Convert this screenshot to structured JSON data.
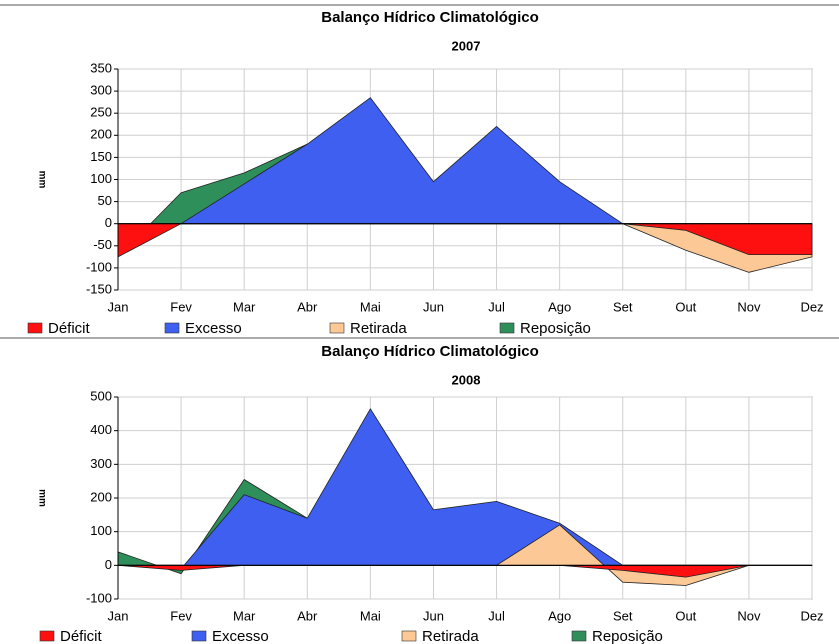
{
  "chart_data": [
    {
      "type": "area",
      "title": "Balanço Hídrico Climatológico",
      "subtitle": "2007",
      "y_label": "mm",
      "categories": [
        "Jan",
        "Fev",
        "Mar",
        "Abr",
        "Mai",
        "Jun",
        "Jul",
        "Ago",
        "Set",
        "Out",
        "Nov",
        "Dez"
      ],
      "series": [
        {
          "name": "Déficit",
          "color": "#ff1010",
          "values": [
            -75,
            0,
            0,
            0,
            0,
            0,
            0,
            0,
            0,
            -15,
            -70,
            -70
          ]
        },
        {
          "name": "Excesso",
          "color": "#3e5ff0",
          "values": [
            0,
            0,
            90,
            180,
            285,
            95,
            220,
            95,
            0,
            0,
            0,
            0
          ]
        },
        {
          "name": "Retirada",
          "color": "#fcc896",
          "values": [
            0,
            0,
            0,
            0,
            0,
            0,
            0,
            0,
            0,
            -60,
            -110,
            -75
          ]
        },
        {
          "name": "Reposição",
          "color": "#2f8f5a",
          "values": [
            -75,
            70,
            115,
            180,
            0,
            0,
            0,
            0,
            0,
            0,
            0,
            0
          ]
        }
      ],
      "ylim": [
        -150,
        350
      ],
      "yticks": [
        -150,
        -100,
        -50,
        0,
        50,
        100,
        150,
        200,
        250,
        300,
        350
      ],
      "grid": true
    },
    {
      "type": "area",
      "title": "Balanço Hídrico Climatológico",
      "subtitle": "2008",
      "y_label": "mm",
      "categories": [
        "Jan",
        "Fev",
        "Mar",
        "Abr",
        "Mai",
        "Jun",
        "Jul",
        "Ago",
        "Set",
        "Out",
        "Nov",
        "Dez"
      ],
      "series": [
        {
          "name": "Déficit",
          "color": "#ff1010",
          "values": [
            0,
            -15,
            0,
            0,
            0,
            0,
            0,
            0,
            -15,
            -35,
            0,
            0
          ]
        },
        {
          "name": "Excesso",
          "color": "#3e5ff0",
          "values": [
            0,
            -10,
            210,
            140,
            465,
            165,
            190,
            125,
            0,
            0,
            0,
            0
          ]
        },
        {
          "name": "Retirada",
          "color": "#fcc896",
          "values": [
            0,
            0,
            0,
            0,
            0,
            0,
            0,
            120,
            -50,
            -60,
            0,
            0
          ]
        },
        {
          "name": "Reposição",
          "color": "#2f8f5a",
          "values": [
            40,
            -25,
            255,
            140,
            0,
            0,
            0,
            0,
            0,
            0,
            0,
            0
          ]
        }
      ],
      "ylim": [
        -100,
        500
      ],
      "yticks": [
        -100,
        0,
        100,
        200,
        300,
        400,
        500
      ],
      "grid": true
    }
  ]
}
